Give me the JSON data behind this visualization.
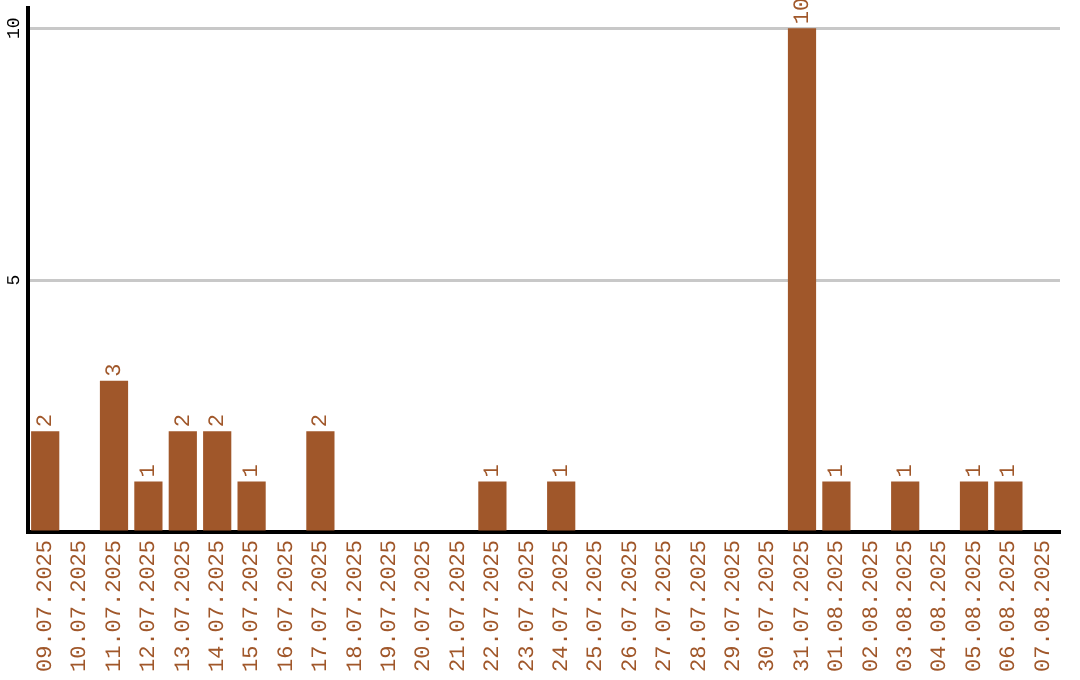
{
  "chart_data": {
    "type": "bar",
    "categories": [
      "09.07.2025",
      "10.07.2025",
      "11.07.2025",
      "12.07.2025",
      "13.07.2025",
      "14.07.2025",
      "15.07.2025",
      "16.07.2025",
      "17.07.2025",
      "18.07.2025",
      "19.07.2025",
      "20.07.2025",
      "21.07.2025",
      "22.07.2025",
      "23.07.2025",
      "24.07.2025",
      "25.07.2025",
      "26.07.2025",
      "27.07.2025",
      "28.07.2025",
      "29.07.2025",
      "30.07.2025",
      "31.07.2025",
      "01.08.2025",
      "02.08.2025",
      "03.08.2025",
      "04.08.2025",
      "05.08.2025",
      "06.08.2025",
      "07.08.2025"
    ],
    "values": [
      2,
      0,
      3,
      1,
      2,
      2,
      1,
      0,
      2,
      0,
      0,
      0,
      0,
      1,
      0,
      1,
      0,
      0,
      0,
      0,
      0,
      0,
      10,
      1,
      0,
      1,
      0,
      1,
      1,
      0
    ],
    "value_labels": [
      "2",
      null,
      "3",
      "1",
      "2",
      "2",
      "1",
      null,
      "2",
      null,
      null,
      null,
      null,
      "1",
      null,
      "1",
      null,
      null,
      null,
      null,
      null,
      null,
      "10",
      "1",
      null,
      "1",
      null,
      "1",
      "1",
      null
    ],
    "color": "#a0572a",
    "ylim": [
      0,
      10.4
    ],
    "yticks": [
      {
        "value": 0,
        "label": null
      },
      5,
      10
    ],
    "grid": "y",
    "legend": false
  }
}
